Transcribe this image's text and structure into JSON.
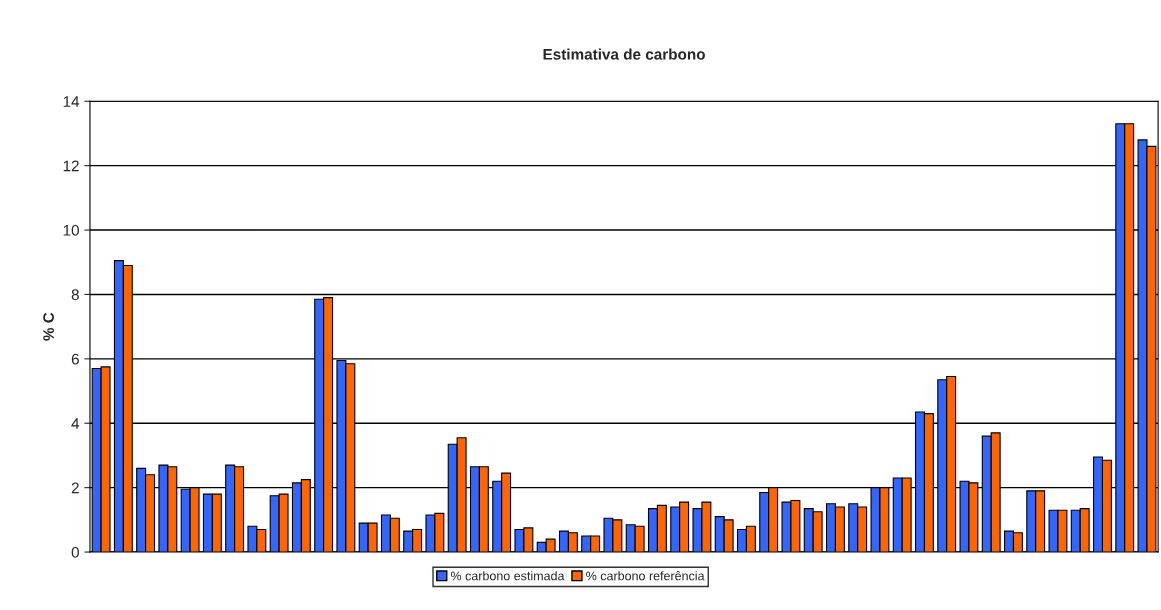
{
  "chart_data": {
    "type": "bar",
    "title": "Estimativa de carbono",
    "ylabel": "% C",
    "categories": [
      null,
      null,
      null,
      null,
      null,
      null,
      null,
      null,
      null,
      null,
      null,
      null,
      null,
      null,
      null,
      null,
      null,
      null,
      null,
      null,
      null,
      null,
      null,
      null,
      null,
      null,
      null,
      null,
      null,
      null,
      null,
      null,
      null,
      null,
      null,
      null,
      null,
      null,
      null,
      null,
      null,
      null,
      null,
      null,
      null,
      null,
      null,
      null
    ],
    "series": [
      {
        "name": "% carbono estimada",
        "color": "#3366ff",
        "values": [
          5.7,
          9.05,
          2.6,
          2.7,
          1.95,
          1.8,
          2.7,
          0.8,
          1.75,
          2.15,
          7.85,
          5.95,
          0.9,
          1.15,
          0.65,
          1.15,
          3.35,
          2.65,
          2.2,
          0.7,
          0.3,
          0.65,
          0.5,
          1.05,
          0.85,
          1.35,
          1.4,
          1.35,
          1.1,
          0.7,
          1.85,
          1.55,
          1.35,
          1.5,
          1.5,
          2.0,
          2.3,
          4.35,
          5.35,
          2.2,
          3.6,
          0.65,
          1.9,
          1.3,
          1.3,
          2.95,
          13.3,
          12.8
        ]
      },
      {
        "name": "% carbono referência",
        "color": "#ff6600",
        "values": [
          5.75,
          8.9,
          2.4,
          2.65,
          2.0,
          1.8,
          2.65,
          0.7,
          1.8,
          2.25,
          7.9,
          5.85,
          0.9,
          1.05,
          0.7,
          1.2,
          3.55,
          2.65,
          2.45,
          0.75,
          0.4,
          0.6,
          0.5,
          1.0,
          0.8,
          1.45,
          1.55,
          1.55,
          1.0,
          0.8,
          2.0,
          1.6,
          1.25,
          1.4,
          1.4,
          2.0,
          2.3,
          4.3,
          5.45,
          2.15,
          3.7,
          0.6,
          1.9,
          1.3,
          1.35,
          2.85,
          13.3,
          12.6
        ]
      }
    ],
    "ylim": [
      0,
      14
    ],
    "yticks": [
      0,
      2,
      4,
      6,
      8,
      10,
      12,
      14
    ],
    "grid": "y",
    "legend": "bottom"
  }
}
